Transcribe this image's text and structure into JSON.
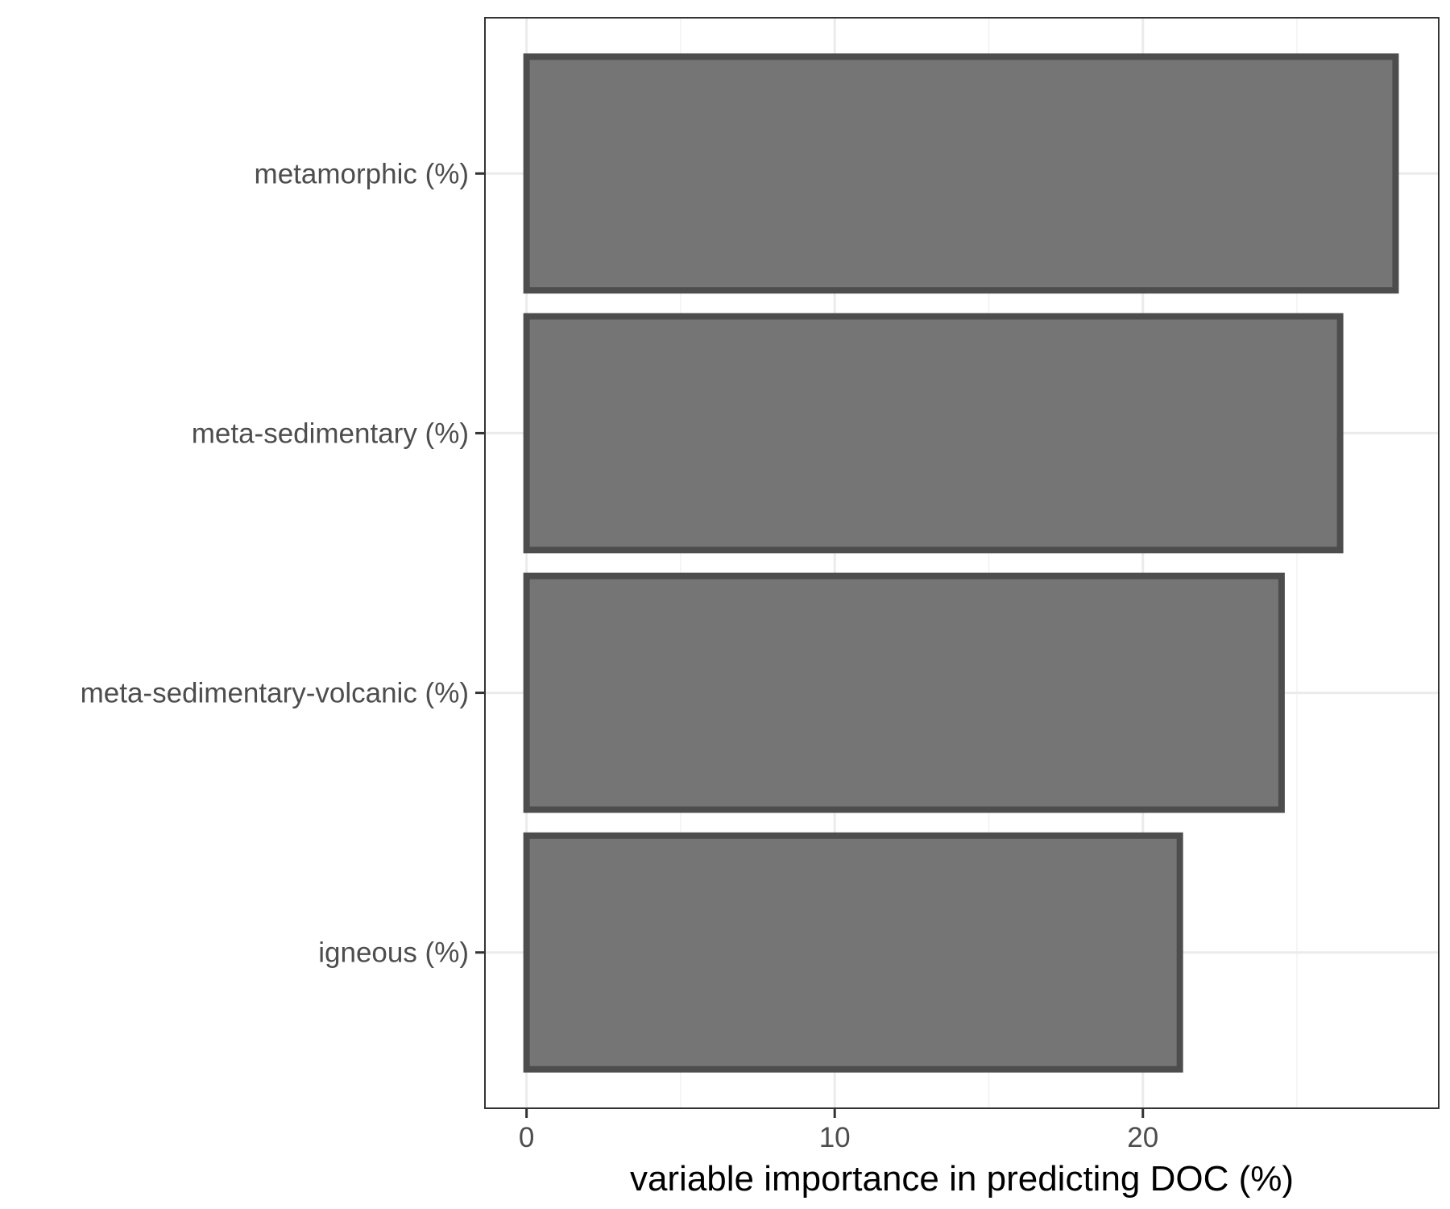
{
  "chart_data": {
    "type": "bar",
    "orientation": "horizontal",
    "categories": [
      "metamorphic (%)",
      "meta-sedimentary (%)",
      "meta-sedimentary-volcanic (%)",
      "igneous (%)"
    ],
    "values": [
      28.2,
      26.4,
      24.5,
      21.2
    ],
    "title": "",
    "xlabel": "variable importance in predicting DOC (%)",
    "ylabel": "",
    "xlim": [
      -1.35,
      29.6
    ],
    "xticks": [
      0,
      10,
      20
    ],
    "xtick_labels": [
      "0",
      "10",
      "20"
    ],
    "grid": true,
    "legend": "none",
    "colors": {
      "bar_fill": "#757575",
      "bar_outline": "#4d4d4d",
      "grid_major": "#ebebeb",
      "grid_minor": "#f2f2f2",
      "panel_border": "#333333",
      "background": "#ffffff"
    }
  }
}
